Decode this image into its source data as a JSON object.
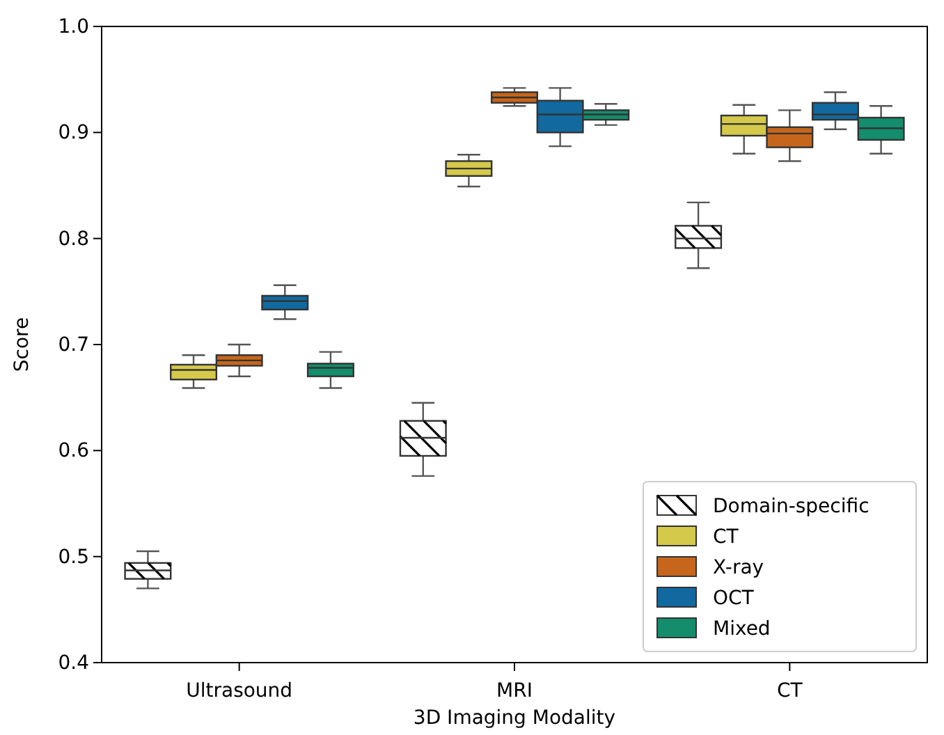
{
  "chart_data": {
    "type": "box",
    "xlabel": "3D Imaging Modality",
    "ylabel": "Score",
    "categories": [
      "Ultrasound",
      "MRI",
      "CT"
    ],
    "ylim": [
      0.4,
      1.0
    ],
    "yticks": [
      0.4,
      0.5,
      0.6,
      0.7,
      0.8,
      0.9,
      {
        "value": 1.0,
        "label": "1.0"
      }
    ],
    "grid": false,
    "legend": "bottom right",
    "series": [
      {
        "name": "Domain-specific",
        "color": "#ffffff",
        "boxes": [
          {
            "low": 0.47,
            "q1": 0.479,
            "median": 0.487,
            "q3": 0.494,
            "high": 0.505
          },
          {
            "low": 0.576,
            "q1": 0.595,
            "median": 0.612,
            "q3": 0.628,
            "high": 0.645
          },
          {
            "low": 0.772,
            "q1": 0.791,
            "median": 0.8,
            "q3": 0.812,
            "high": 0.834
          }
        ]
      },
      {
        "name": "CT",
        "color": "#d4c94a",
        "boxes": [
          {
            "low": 0.659,
            "q1": 0.667,
            "median": 0.676,
            "q3": 0.681,
            "high": 0.69
          },
          {
            "low": 0.849,
            "q1": 0.859,
            "median": 0.866,
            "q3": 0.873,
            "high": 0.879
          },
          {
            "low": 0.88,
            "q1": 0.897,
            "median": 0.908,
            "q3": 0.916,
            "high": 0.926
          }
        ]
      },
      {
        "name": "X-ray",
        "color": "#c6661c",
        "boxes": [
          {
            "low": 0.67,
            "q1": 0.68,
            "median": 0.685,
            "q3": 0.69,
            "high": 0.7
          },
          {
            "low": 0.925,
            "q1": 0.928,
            "median": 0.933,
            "q3": 0.938,
            "high": 0.942
          },
          {
            "low": 0.873,
            "q1": 0.886,
            "median": 0.899,
            "q3": 0.905,
            "high": 0.921
          }
        ]
      },
      {
        "name": "OCT",
        "color": "#11699f",
        "boxes": [
          {
            "low": 0.724,
            "q1": 0.733,
            "median": 0.741,
            "q3": 0.746,
            "high": 0.756
          },
          {
            "low": 0.887,
            "q1": 0.9,
            "median": 0.917,
            "q3": 0.93,
            "high": 0.942
          },
          {
            "low": 0.903,
            "q1": 0.912,
            "median": 0.917,
            "q3": 0.928,
            "high": 0.938
          }
        ]
      },
      {
        "name": "Mixed",
        "color": "#138d6c",
        "boxes": [
          {
            "low": 0.659,
            "q1": 0.67,
            "median": 0.678,
            "q3": 0.682,
            "high": 0.693
          },
          {
            "low": 0.907,
            "q1": 0.912,
            "median": 0.917,
            "q3": 0.921,
            "high": 0.927
          },
          {
            "low": 0.88,
            "q1": 0.893,
            "median": 0.904,
            "q3": 0.914,
            "high": 0.925
          }
        ]
      }
    ]
  }
}
